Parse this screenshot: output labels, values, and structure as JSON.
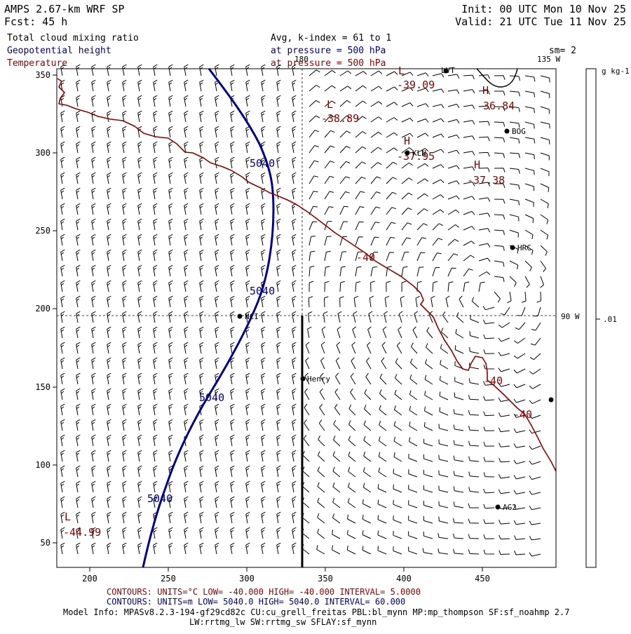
{
  "header": {
    "title": "AMPS 2.67-km WRF SP",
    "fcst": "Fcst:   45 h",
    "init": "Init: 00 UTC Mon 10 Nov 25",
    "valid": "Valid: 21 UTC Tue 11 Nov 25",
    "field1": "Total cloud mixing ratio",
    "field2": "Geopotential height",
    "field3": "Temperature",
    "avg": "Avg, k-index =  61 to   1",
    "pressure_height": "at pressure =  500 hPa",
    "pressure_temp": "at pressure =  500 hPa",
    "smoothing": "sm= 2"
  },
  "colors": {
    "temperature": "#8b0000",
    "height": "#00008b",
    "label_blue": "#000080",
    "text": "#000000"
  },
  "map": {
    "x_ticks": [
      "200",
      "250",
      "300",
      "350",
      "400",
      "450"
    ],
    "y_ticks": [
      "50",
      "100",
      "150",
      "200",
      "250",
      "300",
      "350"
    ],
    "meridian_labels": {
      "lon_135": "135 W",
      "lon_90": "90 W",
      "lon_180": "180"
    },
    "stations": [
      {
        "name": "LVT"
      },
      {
        "name": "BOG"
      },
      {
        "name": "KLN"
      },
      {
        "name": "HRC"
      },
      {
        "name": "NCI"
      },
      {
        "name": "Henry"
      },
      {
        "name": "AG2"
      },
      {
        "name": ""
      }
    ],
    "temp_extrema": [
      {
        "type": "L",
        "value": "-38.89"
      },
      {
        "type": "L",
        "value": "-39.09"
      },
      {
        "type": "H",
        "value": "-36.84"
      },
      {
        "type": "H",
        "value": "-37.95"
      },
      {
        "type": "H",
        "value": "-37.38"
      },
      {
        "type": "L",
        "value": "-44.99"
      }
    ],
    "temp_contour_labels": [
      "-40",
      "-40",
      "-40"
    ],
    "height_contour_labels": [
      "5040",
      "5040",
      "5040",
      "5040"
    ]
  },
  "colorbar": {
    "unit": "g kg-1",
    "tick_label": ".01"
  },
  "footer": {
    "temp_contours": "CONTOURS:  UNITS=°C  LOW= -40.000     HIGH= -40.000     INTERVAL=   5.0000",
    "height_contours": "CONTOURS:  UNITS=m   LOW=  5040.0     HIGH=  5040.0     INTERVAL=   60.000",
    "model_info_1": "Model Info: MPASv8.2.3-194-gf29cd82c CU:cu_grell_freitas PBL:bl_mynn MP:mp_thompson SF:sf_noahmp 2.7",
    "model_info_2": "LW:rrtmg_lw SW:rrtmg_sw SFLAY:sf_mynn"
  }
}
